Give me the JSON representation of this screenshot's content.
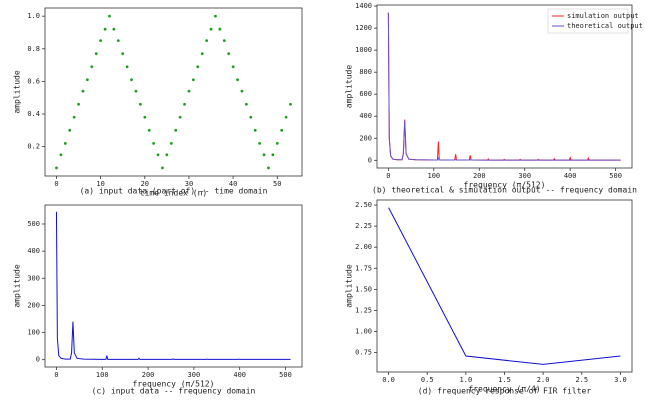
{
  "chart_data": [
    {
      "type": "scatter",
      "caption": "(a) input data (part of) -- time domain",
      "xlabel": "time index (n)",
      "ylabel": "amplitude",
      "color": "#1e9e1e",
      "x": [
        0,
        1,
        2,
        3,
        4,
        5,
        6,
        7,
        8,
        9,
        10,
        11,
        12,
        13,
        14,
        15,
        16,
        17,
        18,
        19,
        20,
        21,
        22,
        23,
        24,
        25,
        26,
        27,
        28,
        29,
        30,
        31,
        32,
        33,
        34,
        35,
        36,
        37,
        38,
        39,
        40,
        41,
        42,
        43,
        44,
        45,
        46,
        47,
        48,
        49,
        50,
        51,
        52,
        53
      ],
      "values": [
        0.07,
        0.15,
        0.22,
        0.3,
        0.38,
        0.46,
        0.54,
        0.61,
        0.69,
        0.77,
        0.85,
        0.92,
        1.0,
        0.92,
        0.85,
        0.77,
        0.69,
        0.61,
        0.54,
        0.46,
        0.38,
        0.3,
        0.22,
        0.15,
        0.07,
        0.15,
        0.22,
        0.3,
        0.38,
        0.46,
        0.54,
        0.61,
        0.69,
        0.77,
        0.85,
        0.92,
        1.0,
        0.92,
        0.85,
        0.77,
        0.69,
        0.61,
        0.54,
        0.46,
        0.38,
        0.3,
        0.22,
        0.15,
        0.07,
        0.15,
        0.22,
        0.3,
        0.38,
        0.46
      ],
      "xlim": [
        -2.6,
        55.6
      ],
      "xticks": [
        0,
        10,
        20,
        30,
        40,
        50
      ],
      "ylim": [
        0.02,
        1.05
      ],
      "yticks": [
        0.2,
        0.4,
        0.6,
        0.8,
        {
          "value": 1,
          "label": "1.0"
        }
      ]
    },
    {
      "type": "line",
      "caption": "(b) theoretical & simulation output -- frequency domain",
      "xlabel": "frequency (π/512)",
      "ylabel": "amplitude",
      "legend": "upper right",
      "x": [
        0,
        2,
        5,
        10,
        20,
        30,
        33,
        36,
        39,
        45,
        60,
        100,
        108,
        110,
        112,
        146,
        148,
        150,
        178,
        180,
        182,
        218,
        220,
        222,
        253,
        255,
        257,
        288,
        290,
        292,
        328,
        330,
        332,
        363,
        365,
        367,
        398,
        400,
        402,
        438,
        440,
        442,
        480,
        511
      ],
      "series": [
        {
          "name": "simulation output",
          "color": "#ff2020",
          "values": [
            1340,
            200,
            40,
            10,
            5,
            5,
            60,
            370,
            60,
            10,
            5,
            3,
            3,
            170,
            3,
            3,
            55,
            3,
            3,
            45,
            3,
            2,
            12,
            2,
            2,
            8,
            2,
            2,
            8,
            2,
            2,
            8,
            2,
            2,
            15,
            2,
            2,
            25,
            2,
            2,
            20,
            2,
            2,
            2
          ]
        },
        {
          "name": "theoretical output",
          "color": "#6a4fd0",
          "values": [
            1340,
            200,
            40,
            10,
            5,
            5,
            60,
            360,
            60,
            10,
            5,
            3,
            3,
            20,
            3,
            3,
            8,
            3,
            3,
            6,
            3,
            2,
            3,
            2,
            2,
            3,
            2,
            2,
            3,
            2,
            2,
            3,
            2,
            2,
            3,
            2,
            2,
            3,
            2,
            2,
            3,
            2,
            2,
            2
          ]
        }
      ],
      "xlim": [
        -25,
        536
      ],
      "xticks": [
        0,
        100,
        200,
        300,
        400,
        500
      ],
      "ylim": [
        -70,
        1410
      ],
      "yticks": [
        0,
        200,
        400,
        600,
        800,
        1000,
        1200,
        1400
      ]
    },
    {
      "type": "line",
      "caption": "(c) input data -- frequency domain",
      "xlabel": "frequency (π/512)",
      "ylabel": "amplitude",
      "color": "#1010d0",
      "x": [
        0,
        2,
        5,
        10,
        20,
        30,
        33,
        36,
        39,
        45,
        60,
        100,
        108,
        110,
        112,
        178,
        180,
        182,
        253,
        255,
        257,
        328,
        330,
        332,
        398,
        400,
        402,
        511
      ],
      "values": [
        545,
        80,
        15,
        5,
        2,
        2,
        25,
        140,
        25,
        5,
        2,
        1,
        1,
        15,
        1,
        1,
        5,
        1,
        1,
        3,
        1,
        1,
        2,
        1,
        1,
        2,
        1,
        1
      ],
      "xlim": [
        -25,
        536
      ],
      "xticks": [
        0,
        100,
        200,
        300,
        400,
        500
      ],
      "ylim": [
        -27,
        570
      ],
      "yticks": [
        0,
        100,
        200,
        300,
        400,
        500
      ]
    },
    {
      "type": "line",
      "caption": "(d) frequency response of FIR filter",
      "xlabel": "frequency (π/4)",
      "ylabel": "amplitude",
      "color": "#1010d0",
      "x": [
        0,
        1,
        2,
        3
      ],
      "values": [
        2.47,
        0.71,
        0.61,
        0.71
      ],
      "xlim": [
        -0.15,
        3.15
      ],
      "xticks": [
        {
          "value": 0,
          "label": "0.0"
        },
        0.5,
        {
          "value": 1,
          "label": "1.0"
        },
        1.5,
        {
          "value": 2,
          "label": "2.0"
        },
        2.5,
        {
          "value": 3,
          "label": "3.0"
        }
      ],
      "ylim": [
        0.52,
        2.56
      ],
      "yticks": [
        {
          "value": 0.75,
          "label": "0.75"
        },
        {
          "value": 1,
          "label": "1.00"
        },
        {
          "value": 1.25,
          "label": "1.25"
        },
        {
          "value": 1.5,
          "label": "1.50"
        },
        {
          "value": 1.75,
          "label": "1.75"
        },
        {
          "value": 2,
          "label": "2.00"
        },
        {
          "value": 2.25,
          "label": "2.25"
        },
        {
          "value": 2.5,
          "label": "2.50"
        }
      ]
    }
  ]
}
